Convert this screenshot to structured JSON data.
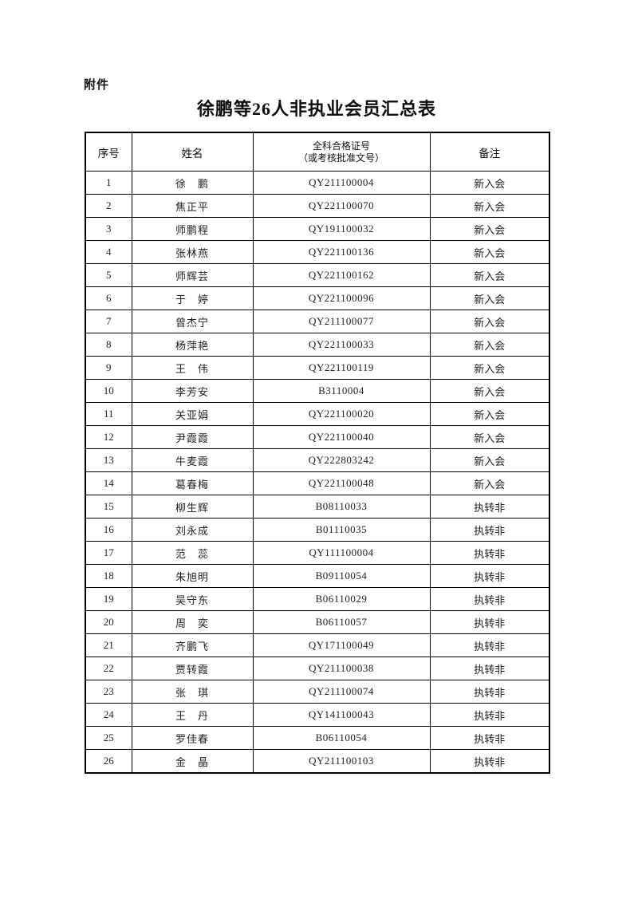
{
  "page": {
    "attachment_label": "附件",
    "title": "徐鹏等26人非执业会员汇总表"
  },
  "table": {
    "headers": {
      "no": "序号",
      "name": "姓名",
      "cert_line1": "全科合格证号",
      "cert_line2": "（或考核批准文号）",
      "remark": "备注"
    },
    "rows": [
      {
        "no": "1",
        "name": "徐　鹏",
        "cert": "QY211100004",
        "remark": "新入会"
      },
      {
        "no": "2",
        "name": "焦正平",
        "cert": "QY221100070",
        "remark": "新入会"
      },
      {
        "no": "3",
        "name": "师鹏程",
        "cert": "QY191100032",
        "remark": "新入会"
      },
      {
        "no": "4",
        "name": "张林燕",
        "cert": "QY221100136",
        "remark": "新入会"
      },
      {
        "no": "5",
        "name": "师辉芸",
        "cert": "QY221100162",
        "remark": "新入会"
      },
      {
        "no": "6",
        "name": "于　婷",
        "cert": "QY221100096",
        "remark": "新入会"
      },
      {
        "no": "7",
        "name": "曾杰宁",
        "cert": "QY211100077",
        "remark": "新入会"
      },
      {
        "no": "8",
        "name": "杨萍艳",
        "cert": "QY221100033",
        "remark": "新入会"
      },
      {
        "no": "9",
        "name": "王　伟",
        "cert": "QY221100119",
        "remark": "新入会"
      },
      {
        "no": "10",
        "name": "李芳安",
        "cert": "B3110004",
        "remark": "新入会"
      },
      {
        "no": "11",
        "name": "关亚娟",
        "cert": "QY221100020",
        "remark": "新入会"
      },
      {
        "no": "12",
        "name": "尹霞霞",
        "cert": "QY221100040",
        "remark": "新入会"
      },
      {
        "no": "13",
        "name": "牛麦霞",
        "cert": "QY222803242",
        "remark": "新入会"
      },
      {
        "no": "14",
        "name": "葛春梅",
        "cert": "QY221100048",
        "remark": "新入会"
      },
      {
        "no": "15",
        "name": "柳生辉",
        "cert": "B08110033",
        "remark": "执转非"
      },
      {
        "no": "16",
        "name": "刘永成",
        "cert": "B01110035",
        "remark": "执转非"
      },
      {
        "no": "17",
        "name": "范　蕊",
        "cert": "QY111100004",
        "remark": "执转非"
      },
      {
        "no": "18",
        "name": "朱旭明",
        "cert": "B09110054",
        "remark": "执转非"
      },
      {
        "no": "19",
        "name": "吴守东",
        "cert": "B06110029",
        "remark": "执转非"
      },
      {
        "no": "20",
        "name": "周　奕",
        "cert": "B06110057",
        "remark": "执转非"
      },
      {
        "no": "21",
        "name": "齐鹏飞",
        "cert": "QY171100049",
        "remark": "执转非"
      },
      {
        "no": "22",
        "name": "贾转霞",
        "cert": "QY211100038",
        "remark": "执转非"
      },
      {
        "no": "23",
        "name": "张　琪",
        "cert": "QY211100074",
        "remark": "执转非"
      },
      {
        "no": "24",
        "name": "王　丹",
        "cert": "QY141100043",
        "remark": "执转非"
      },
      {
        "no": "25",
        "name": "罗佳春",
        "cert": "B06110054",
        "remark": "执转非"
      },
      {
        "no": "26",
        "name": "金　晶",
        "cert": "QY211100103",
        "remark": "执转非"
      }
    ]
  }
}
